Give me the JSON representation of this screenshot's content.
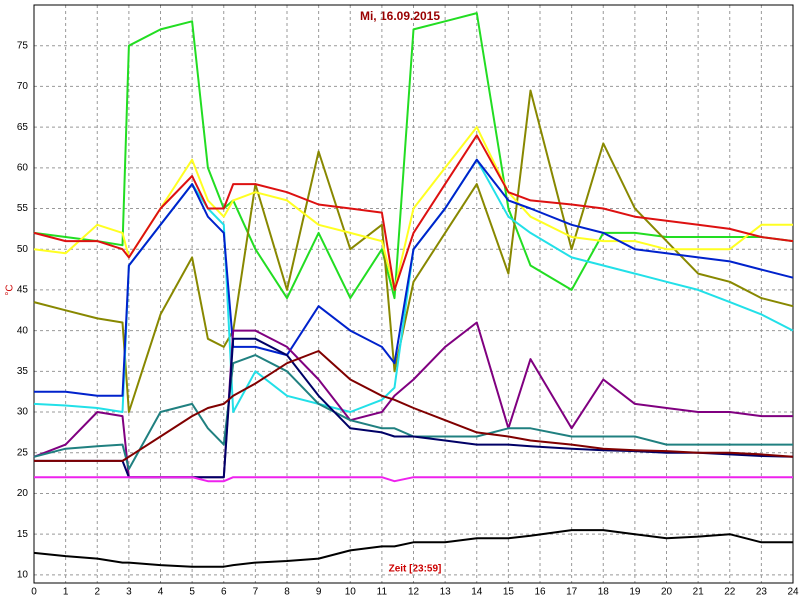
{
  "chart_data": {
    "type": "line",
    "title": "Mi, 16.09.2015",
    "xlabel": "Zeit [23:59]",
    "ylabel": "°C",
    "x": [
      0,
      1,
      2,
      2.8,
      3,
      4,
      5,
      5.5,
      6,
      6.3,
      7,
      8,
      9,
      10,
      11,
      11.4,
      12,
      13,
      14,
      15,
      15.7,
      17,
      18,
      19,
      20,
      21,
      22,
      23,
      24
    ],
    "xlim": [
      0,
      24
    ],
    "xticks": [
      0,
      1,
      2,
      3,
      4,
      5,
      6,
      7,
      8,
      9,
      10,
      11,
      12,
      13,
      14,
      15,
      16,
      17,
      18,
      19,
      20,
      21,
      22,
      23,
      24
    ],
    "ylim": [
      9,
      80
    ],
    "yticks": [
      10,
      15,
      20,
      25,
      30,
      35,
      40,
      45,
      50,
      55,
      60,
      65,
      70,
      75
    ],
    "grid": true,
    "series": [
      {
        "color": "#22dd22",
        "values": [
          52,
          51.5,
          51,
          50.5,
          75,
          77,
          78,
          60,
          55,
          56,
          50,
          44,
          52,
          44,
          50,
          44,
          77,
          78,
          79,
          55,
          48,
          45,
          52,
          52,
          51.5,
          51.5,
          51.5,
          51.5,
          51
        ]
      },
      {
        "color": "#888800",
        "values": [
          43.5,
          42.5,
          41.5,
          41,
          30,
          42,
          49,
          39,
          38,
          40,
          58,
          45,
          62,
          50,
          53,
          35,
          46,
          52,
          58,
          47,
          69.5,
          50,
          63,
          55,
          51,
          47,
          46,
          44,
          43
        ]
      },
      {
        "color": "#ffff22",
        "values": [
          50,
          49.5,
          53,
          52,
          49,
          55,
          61,
          56,
          54,
          56,
          57,
          56,
          53,
          52,
          51,
          45,
          55,
          60,
          65,
          57,
          54,
          51.5,
          51,
          51,
          50,
          50,
          50,
          53,
          53
        ]
      },
      {
        "color": "#22e0e8",
        "values": [
          31,
          30.8,
          30.5,
          30,
          48,
          53,
          58,
          55,
          53,
          30,
          35,
          32,
          31,
          30,
          31.5,
          33,
          50,
          55,
          61,
          54,
          52,
          49,
          48,
          47,
          46,
          45,
          43.5,
          42,
          40
        ]
      },
      {
        "color": "#dd1111",
        "values": [
          52,
          51,
          51,
          50,
          49,
          55,
          59,
          55,
          55,
          58,
          58,
          57,
          55.5,
          55,
          54.5,
          45,
          52,
          58,
          64,
          57,
          56,
          55.5,
          55,
          54,
          53.5,
          53,
          52.5,
          51.5,
          51
        ]
      },
      {
        "color": "#0022cc",
        "values": [
          32.5,
          32.5,
          32,
          32,
          48,
          53,
          58,
          54,
          52,
          38,
          38,
          37,
          43,
          40,
          38,
          36,
          50,
          55,
          61,
          56,
          55,
          53,
          52,
          50,
          49.5,
          49,
          48.5,
          47.5,
          46.5
        ]
      },
      {
        "color": "#800080",
        "values": [
          24.5,
          26,
          30,
          29.5,
          22,
          22,
          22,
          22,
          22,
          40,
          40,
          38,
          34,
          29,
          30,
          32,
          34,
          38,
          41,
          28,
          36.5,
          28,
          34,
          31,
          30.5,
          30,
          30,
          29.5,
          29.5
        ]
      },
      {
        "color": "#208080",
        "values": [
          24.5,
          25.5,
          25.8,
          26,
          23,
          30,
          31,
          28,
          26,
          36,
          37,
          35,
          31,
          29,
          28,
          28,
          27,
          27,
          27,
          28,
          28,
          27,
          27,
          27,
          26,
          26,
          26,
          26,
          26
        ]
      },
      {
        "color": "#000066",
        "values": [
          24,
          24,
          24,
          24,
          22,
          22,
          22,
          22,
          22,
          39,
          39,
          37,
          32,
          28,
          27.5,
          27,
          27,
          26.5,
          26,
          26,
          25.8,
          25.5,
          25.3,
          25.2,
          25,
          25,
          24.8,
          24.6,
          24.5
        ]
      },
      {
        "color": "#800000",
        "values": [
          24,
          24,
          24,
          24,
          24.5,
          27,
          29.5,
          30.5,
          31,
          32,
          33.5,
          36,
          37.5,
          34,
          32,
          31.5,
          30.5,
          29,
          27.5,
          27,
          26.5,
          26,
          25.5,
          25.3,
          25.2,
          25,
          25,
          24.8,
          24.5
        ]
      },
      {
        "color": "#ee22ee",
        "values": [
          22,
          22,
          22,
          22,
          22,
          22,
          22,
          21.5,
          21.5,
          22,
          22,
          22,
          22,
          22,
          22,
          21.5,
          22,
          22,
          22,
          22,
          22,
          22,
          22,
          22,
          22,
          22,
          22,
          22,
          22
        ]
      },
      {
        "color": "#000000",
        "values": [
          12.7,
          12.3,
          12,
          11.5,
          11.5,
          11.2,
          11,
          11,
          11,
          11.2,
          11.5,
          11.7,
          12,
          13,
          13.5,
          13.5,
          14,
          14,
          14.5,
          14.5,
          14.8,
          15.5,
          15.5,
          15,
          14.5,
          14.7,
          15,
          14,
          14
        ]
      }
    ]
  }
}
